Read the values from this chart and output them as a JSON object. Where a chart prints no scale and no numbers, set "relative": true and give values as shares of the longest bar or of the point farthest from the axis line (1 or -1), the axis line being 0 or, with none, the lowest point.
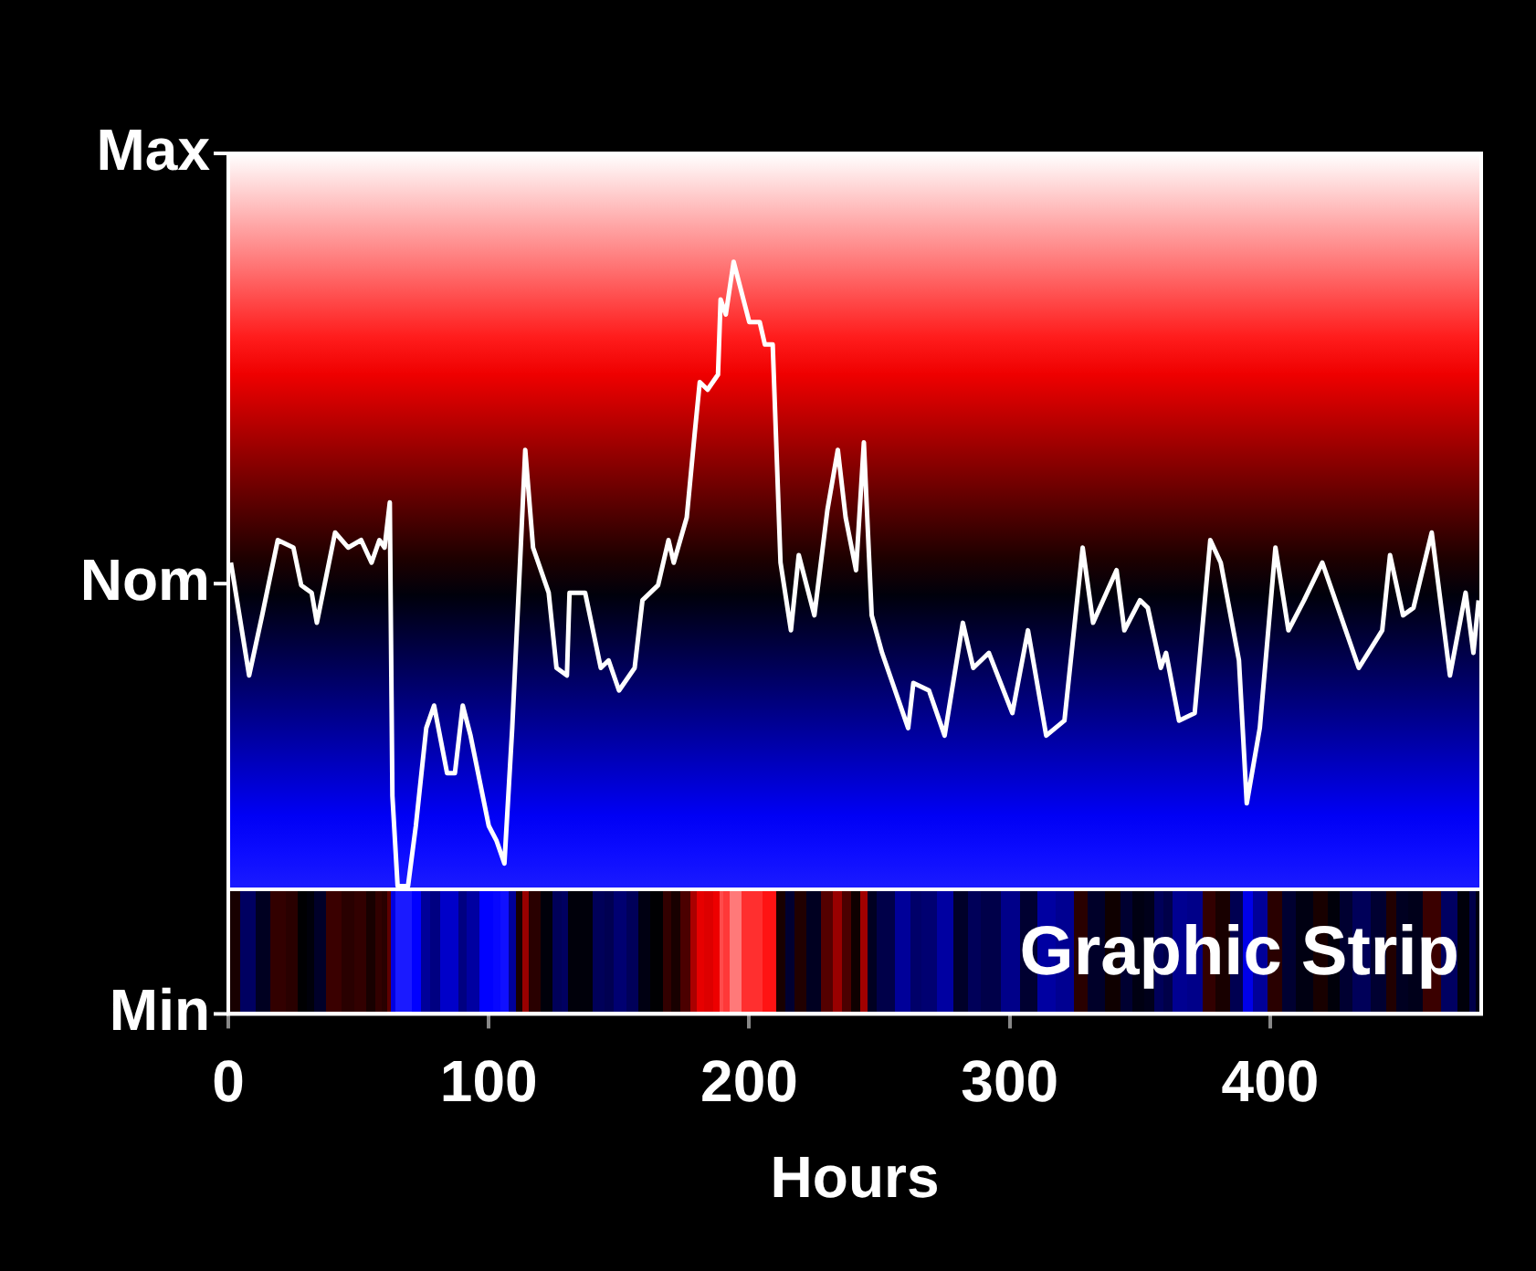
{
  "chart_data": {
    "type": "line",
    "relative": true,
    "xlabel": "Hours",
    "annotations": [
      "Max",
      "Nom",
      "Min",
      "Graphic Strip"
    ],
    "xlim": [
      0,
      481
    ],
    "xticks": [
      0,
      100,
      200,
      300,
      400
    ],
    "legend": false,
    "marker": "none",
    "line_style": "solid",
    "series": [
      {
        "color": "#ffffff",
        "x": [
          1,
          8,
          13,
          19,
          25,
          28,
          32,
          34,
          41,
          46,
          51,
          55,
          58,
          60,
          62,
          63,
          65,
          69,
          72,
          76,
          79,
          84,
          87,
          90,
          93,
          100,
          103,
          106,
          109,
          112,
          114,
          117,
          123,
          126,
          130,
          131,
          137,
          143,
          146,
          150,
          156,
          159,
          165,
          169,
          171,
          176,
          179,
          181,
          184,
          188,
          189,
          191,
          194,
          200,
          204,
          206,
          209,
          212,
          216,
          219,
          225,
          230,
          234,
          237,
          241,
          244,
          247,
          251,
          261,
          263,
          269,
          275,
          282,
          286,
          292,
          301,
          307,
          314,
          321,
          328,
          332,
          341,
          344,
          350,
          353,
          358,
          360,
          365,
          371,
          377,
          381,
          388,
          391,
          396,
          402,
          407,
          413,
          420,
          424,
          429,
          434,
          443,
          446,
          451,
          455,
          462,
          469,
          475,
          478,
          480
        ],
        "values": [
          0.6,
          0.45,
          0.53,
          0.63,
          0.62,
          0.57,
          0.56,
          0.52,
          0.64,
          0.62,
          0.63,
          0.6,
          0.63,
          0.62,
          0.68,
          0.29,
          0.17,
          0.17,
          0.25,
          0.38,
          0.41,
          0.32,
          0.32,
          0.41,
          0.37,
          0.25,
          0.23,
          0.2,
          0.38,
          0.6,
          0.75,
          0.62,
          0.56,
          0.46,
          0.45,
          0.56,
          0.56,
          0.46,
          0.47,
          0.43,
          0.46,
          0.55,
          0.57,
          0.63,
          0.6,
          0.66,
          0.77,
          0.84,
          0.83,
          0.85,
          0.95,
          0.93,
          1,
          0.92,
          0.92,
          0.89,
          0.89,
          0.6,
          0.51,
          0.61,
          0.53,
          0.67,
          0.75,
          0.66,
          0.59,
          0.76,
          0.53,
          0.48,
          0.38,
          0.44,
          0.43,
          0.37,
          0.52,
          0.46,
          0.48,
          0.4,
          0.51,
          0.37,
          0.39,
          0.62,
          0.52,
          0.59,
          0.51,
          0.55,
          0.54,
          0.46,
          0.48,
          0.39,
          0.4,
          0.63,
          0.6,
          0.47,
          0.28,
          0.38,
          0.62,
          0.51,
          0.55,
          0.6,
          0.56,
          0.51,
          0.46,
          0.51,
          0.61,
          0.53,
          0.54,
          0.64,
          0.45,
          0.56,
          0.48,
          0.55
        ]
      }
    ]
  }
}
